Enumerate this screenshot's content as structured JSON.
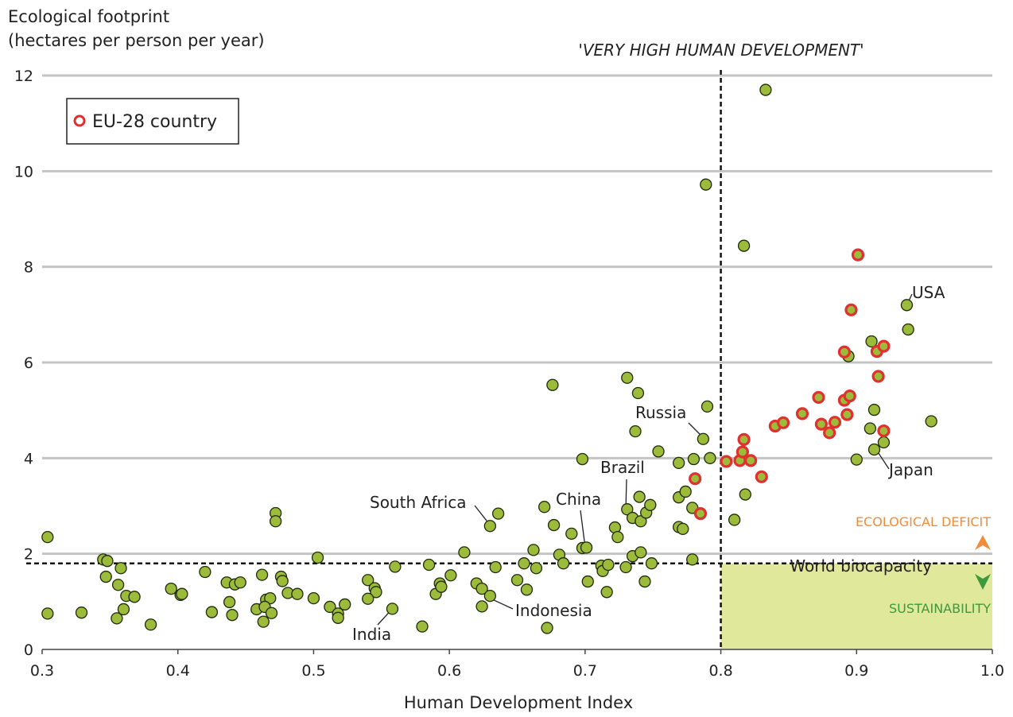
{
  "chart_data": {
    "type": "scatter",
    "title": "",
    "xlabel": "Human Development Index",
    "ylabel_line1": "Ecological footprint",
    "ylabel_line2": "(hectares per person per year)",
    "xlim": [
      0.3,
      1.0
    ],
    "ylim": [
      0,
      12
    ],
    "x_ticks": [
      "0.3",
      "0.4",
      "0.5",
      "0.6",
      "0.7",
      "0.8",
      "0.9",
      "1.0"
    ],
    "y_ticks": [
      "0",
      "2",
      "4",
      "6",
      "8",
      "10",
      "12"
    ],
    "grid": "horizontal",
    "legend": {
      "label": "EU-28 country",
      "position": "top-left"
    },
    "threshold_x": 0.8,
    "threshold_label": "'VERY HIGH HUMAN DEVELOPMENT'",
    "world_biocapacity": 1.8,
    "world_biocapacity_label": "World biocapacity",
    "deficit_label": "ECOLOGICAL DEFICIT",
    "sustainability_label": "SUSTAINABILITY",
    "colors": {
      "point_fill": "#9dbb3b",
      "eu_ring": "#e03030",
      "deficit": "#f08c3c",
      "sustainability": "#3c9a3c",
      "sustainable_zone": "#e0e89c",
      "grid": "#c4c4c4"
    },
    "labels": [
      {
        "text": "USA",
        "x": 0.937,
        "y": 7.2
      },
      {
        "text": "Russia",
        "x": 0.788,
        "y": 4.4
      },
      {
        "text": "Japan",
        "x": 0.914,
        "y": 4.2
      },
      {
        "text": "Brazil",
        "x": 0.73,
        "y": 2.95
      },
      {
        "text": "China",
        "x": 0.7,
        "y": 2.15
      },
      {
        "text": "South Africa",
        "x": 0.63,
        "y": 2.6
      },
      {
        "text": "Indonesia",
        "x": 0.626,
        "y": 1.12
      },
      {
        "text": "India",
        "x": 0.558,
        "y": 0.85
      }
    ],
    "points": [
      {
        "x": 0.304,
        "y": 2.35
      },
      {
        "x": 0.304,
        "y": 0.75
      },
      {
        "x": 0.329,
        "y": 0.77
      },
      {
        "x": 0.345,
        "y": 1.88
      },
      {
        "x": 0.348,
        "y": 1.85
      },
      {
        "x": 0.347,
        "y": 1.52
      },
      {
        "x": 0.356,
        "y": 1.35
      },
      {
        "x": 0.358,
        "y": 1.7
      },
      {
        "x": 0.362,
        "y": 1.12
      },
      {
        "x": 0.368,
        "y": 1.1
      },
      {
        "x": 0.355,
        "y": 0.65
      },
      {
        "x": 0.36,
        "y": 0.84
      },
      {
        "x": 0.38,
        "y": 0.52
      },
      {
        "x": 0.395,
        "y": 1.27
      },
      {
        "x": 0.402,
        "y": 1.14
      },
      {
        "x": 0.403,
        "y": 1.16
      },
      {
        "x": 0.42,
        "y": 1.62
      },
      {
        "x": 0.425,
        "y": 0.78
      },
      {
        "x": 0.436,
        "y": 1.4
      },
      {
        "x": 0.438,
        "y": 0.99
      },
      {
        "x": 0.442,
        "y": 1.36
      },
      {
        "x": 0.446,
        "y": 1.4
      },
      {
        "x": 0.44,
        "y": 0.72
      },
      {
        "x": 0.458,
        "y": 0.84
      },
      {
        "x": 0.462,
        "y": 1.56
      },
      {
        "x": 0.465,
        "y": 1.04
      },
      {
        "x": 0.468,
        "y": 1.07
      },
      {
        "x": 0.464,
        "y": 0.89
      },
      {
        "x": 0.463,
        "y": 0.58
      },
      {
        "x": 0.469,
        "y": 0.76
      },
      {
        "x": 0.472,
        "y": 2.85
      },
      {
        "x": 0.472,
        "y": 2.68
      },
      {
        "x": 0.476,
        "y": 1.52
      },
      {
        "x": 0.477,
        "y": 1.43
      },
      {
        "x": 0.481,
        "y": 1.18
      },
      {
        "x": 0.488,
        "y": 1.16
      },
      {
        "x": 0.5,
        "y": 1.07
      },
      {
        "x": 0.503,
        "y": 1.92
      },
      {
        "x": 0.512,
        "y": 0.89
      },
      {
        "x": 0.518,
        "y": 0.75
      },
      {
        "x": 0.523,
        "y": 0.94
      },
      {
        "x": 0.518,
        "y": 0.66
      },
      {
        "x": 0.54,
        "y": 1.45
      },
      {
        "x": 0.545,
        "y": 1.28
      },
      {
        "x": 0.546,
        "y": 1.2
      },
      {
        "x": 0.54,
        "y": 1.06
      },
      {
        "x": 0.558,
        "y": 0.85
      },
      {
        "x": 0.56,
        "y": 1.73
      },
      {
        "x": 0.58,
        "y": 0.48
      },
      {
        "x": 0.585,
        "y": 1.77
      },
      {
        "x": 0.59,
        "y": 1.16
      },
      {
        "x": 0.593,
        "y": 1.38
      },
      {
        "x": 0.594,
        "y": 1.31
      },
      {
        "x": 0.601,
        "y": 1.55
      },
      {
        "x": 0.611,
        "y": 2.03
      },
      {
        "x": 0.62,
        "y": 1.38
      },
      {
        "x": 0.624,
        "y": 1.27
      },
      {
        "x": 0.624,
        "y": 0.9
      },
      {
        "x": 0.63,
        "y": 1.12
      },
      {
        "x": 0.63,
        "y": 2.58
      },
      {
        "x": 0.636,
        "y": 2.84
      },
      {
        "x": 0.634,
        "y": 1.72
      },
      {
        "x": 0.65,
        "y": 1.45
      },
      {
        "x": 0.655,
        "y": 1.8
      },
      {
        "x": 0.657,
        "y": 1.25
      },
      {
        "x": 0.662,
        "y": 2.08
      },
      {
        "x": 0.664,
        "y": 1.7
      },
      {
        "x": 0.67,
        "y": 2.98
      },
      {
        "x": 0.672,
        "y": 0.45
      },
      {
        "x": 0.676,
        "y": 5.53
      },
      {
        "x": 0.677,
        "y": 2.6
      },
      {
        "x": 0.681,
        "y": 1.98
      },
      {
        "x": 0.684,
        "y": 1.8
      },
      {
        "x": 0.69,
        "y": 2.42
      },
      {
        "x": 0.698,
        "y": 3.98
      },
      {
        "x": 0.698,
        "y": 2.12
      },
      {
        "x": 0.701,
        "y": 2.13
      },
      {
        "x": 0.702,
        "y": 1.42
      },
      {
        "x": 0.712,
        "y": 1.75
      },
      {
        "x": 0.713,
        "y": 1.64
      },
      {
        "x": 0.716,
        "y": 1.2
      },
      {
        "x": 0.717,
        "y": 1.77
      },
      {
        "x": 0.722,
        "y": 2.55
      },
      {
        "x": 0.724,
        "y": 2.35
      },
      {
        "x": 0.73,
        "y": 1.72
      },
      {
        "x": 0.731,
        "y": 2.93
      },
      {
        "x": 0.731,
        "y": 5.68
      },
      {
        "x": 0.735,
        "y": 2.75
      },
      {
        "x": 0.735,
        "y": 1.95
      },
      {
        "x": 0.737,
        "y": 4.56
      },
      {
        "x": 0.739,
        "y": 5.36
      },
      {
        "x": 0.74,
        "y": 3.19
      },
      {
        "x": 0.741,
        "y": 2.68
      },
      {
        "x": 0.741,
        "y": 2.03
      },
      {
        "x": 0.744,
        "y": 1.42
      },
      {
        "x": 0.745,
        "y": 2.86
      },
      {
        "x": 0.748,
        "y": 3.02
      },
      {
        "x": 0.749,
        "y": 1.8
      },
      {
        "x": 0.754,
        "y": 4.14
      },
      {
        "x": 0.769,
        "y": 3.18
      },
      {
        "x": 0.769,
        "y": 3.9
      },
      {
        "x": 0.769,
        "y": 2.56
      },
      {
        "x": 0.772,
        "y": 2.52
      },
      {
        "x": 0.774,
        "y": 3.3
      },
      {
        "x": 0.779,
        "y": 1.88
      },
      {
        "x": 0.779,
        "y": 2.96
      },
      {
        "x": 0.78,
        "y": 3.98
      },
      {
        "x": 0.787,
        "y": 4.4
      },
      {
        "x": 0.789,
        "y": 9.72
      },
      {
        "x": 0.79,
        "y": 5.08
      },
      {
        "x": 0.792,
        "y": 4.0
      },
      {
        "x": 0.81,
        "y": 2.71
      },
      {
        "x": 0.817,
        "y": 8.44
      },
      {
        "x": 0.818,
        "y": 3.24
      },
      {
        "x": 0.833,
        "y": 11.7
      },
      {
        "x": 0.9,
        "y": 3.97
      },
      {
        "x": 0.91,
        "y": 4.62
      },
      {
        "x": 0.911,
        "y": 6.44
      },
      {
        "x": 0.913,
        "y": 5.01
      },
      {
        "x": 0.913,
        "y": 4.18
      },
      {
        "x": 0.92,
        "y": 4.33
      },
      {
        "x": 0.937,
        "y": 7.2
      },
      {
        "x": 0.938,
        "y": 6.69
      },
      {
        "x": 0.955,
        "y": 4.77
      },
      {
        "x": 0.894,
        "y": 6.13
      },
      {
        "x": 0.781,
        "y": 3.57,
        "eu": true
      },
      {
        "x": 0.785,
        "y": 2.84,
        "eu": true
      },
      {
        "x": 0.804,
        "y": 3.93,
        "eu": true
      },
      {
        "x": 0.814,
        "y": 3.95,
        "eu": true
      },
      {
        "x": 0.816,
        "y": 4.13,
        "eu": true
      },
      {
        "x": 0.817,
        "y": 4.39,
        "eu": true
      },
      {
        "x": 0.822,
        "y": 3.95,
        "eu": true
      },
      {
        "x": 0.83,
        "y": 3.61,
        "eu": true
      },
      {
        "x": 0.84,
        "y": 4.67,
        "eu": true
      },
      {
        "x": 0.846,
        "y": 4.74,
        "eu": true
      },
      {
        "x": 0.86,
        "y": 4.93,
        "eu": true
      },
      {
        "x": 0.872,
        "y": 5.27,
        "eu": true
      },
      {
        "x": 0.874,
        "y": 4.71,
        "eu": true
      },
      {
        "x": 0.88,
        "y": 4.53,
        "eu": true
      },
      {
        "x": 0.884,
        "y": 4.75,
        "eu": true
      },
      {
        "x": 0.891,
        "y": 6.22,
        "eu": true
      },
      {
        "x": 0.891,
        "y": 5.21,
        "eu": true
      },
      {
        "x": 0.893,
        "y": 4.91,
        "eu": true
      },
      {
        "x": 0.895,
        "y": 5.3,
        "eu": true
      },
      {
        "x": 0.896,
        "y": 7.1,
        "eu": true
      },
      {
        "x": 0.901,
        "y": 8.25,
        "eu": true
      },
      {
        "x": 0.915,
        "y": 6.23,
        "eu": true
      },
      {
        "x": 0.916,
        "y": 5.71,
        "eu": true
      },
      {
        "x": 0.92,
        "y": 6.34,
        "eu": true
      },
      {
        "x": 0.92,
        "y": 4.57,
        "eu": true
      }
    ]
  }
}
